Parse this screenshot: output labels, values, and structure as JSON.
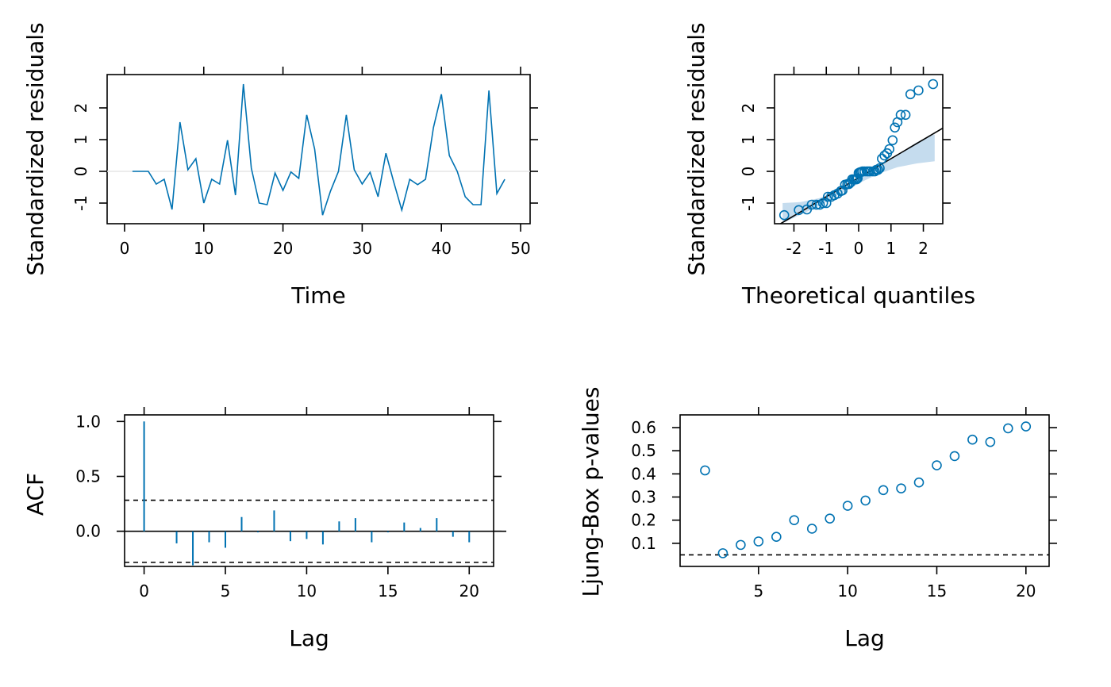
{
  "colors": {
    "series": "#0072B2",
    "band": "#C5DCEE",
    "ref": "#e6e6e6",
    "ink": "#000000"
  },
  "chart_data": [
    {
      "id": "resid",
      "type": "line",
      "xlabel": "Time",
      "ylabel": "Standardized residuals",
      "xlim": [
        -2.2,
        51.2
      ],
      "ylim": [
        -1.65,
        3.05
      ],
      "xticks": [
        0,
        10,
        20,
        30,
        40,
        50
      ],
      "yticks": [
        -1,
        0,
        1,
        2
      ],
      "reference_line_y": 0,
      "x": [
        1,
        2,
        3,
        4,
        5,
        6,
        7,
        8,
        9,
        10,
        11,
        12,
        13,
        14,
        15,
        16,
        17,
        18,
        19,
        20,
        21,
        22,
        23,
        24,
        25,
        26,
        27,
        28,
        29,
        30,
        31,
        32,
        33,
        34,
        35,
        36,
        37,
        38,
        39,
        40,
        41,
        42,
        43,
        44,
        45,
        46,
        47,
        48
      ],
      "y": [
        0.0,
        0.0,
        0.0,
        -0.4,
        -0.25,
        -1.2,
        1.55,
        0.05,
        0.4,
        -1.0,
        -0.25,
        -0.4,
        0.98,
        -0.75,
        2.75,
        0.1,
        -1.0,
        -1.05,
        -0.05,
        -0.6,
        -0.02,
        -0.22,
        1.78,
        0.7,
        -1.38,
        -0.62,
        0.0,
        1.78,
        0.05,
        -0.4,
        -0.03,
        -0.8,
        0.57,
        -0.35,
        -1.22,
        -0.25,
        -0.42,
        -0.25,
        1.38,
        2.43,
        0.5,
        0.0,
        -0.8,
        -1.05,
        -1.05,
        2.55,
        -0.7,
        -0.25
      ]
    },
    {
      "id": "qq",
      "type": "scatter",
      "xlabel": "Theoretical quantiles",
      "ylabel": "Standardized residuals",
      "xlim": [
        -2.6,
        2.6
      ],
      "ylim": [
        -1.65,
        3.05
      ],
      "xticks": [
        -2,
        -1,
        0,
        1,
        2
      ],
      "yticks": [
        -1,
        0,
        1,
        2
      ],
      "reference_line": {
        "intercept": -0.2,
        "slope": 0.6
      },
      "band": {
        "x": [
          -2.35,
          -1.8,
          -1.2,
          -0.6,
          0.0,
          0.6,
          1.2,
          1.8,
          2.35
        ],
        "lower": [
          -1.63,
          -1.37,
          -1.08,
          -0.73,
          -0.38,
          -0.08,
          0.13,
          0.25,
          0.32
        ],
        "upper": [
          -1.0,
          -0.97,
          -0.84,
          -0.56,
          -0.2,
          0.16,
          0.53,
          0.92,
          1.17
        ]
      },
      "x": [
        -2.3,
        -1.85,
        -1.6,
        -1.45,
        -1.3,
        -1.2,
        -1.1,
        -1.0,
        -0.95,
        -0.85,
        -0.75,
        -0.65,
        -0.55,
        -0.5,
        -0.42,
        -0.35,
        -0.3,
        -0.25,
        -0.2,
        -0.15,
        -0.1,
        -0.06,
        -0.03,
        0.0,
        0.04,
        0.08,
        0.12,
        0.18,
        0.25,
        0.3,
        0.35,
        0.45,
        0.5,
        0.55,
        0.6,
        0.65,
        0.72,
        0.8,
        0.88,
        0.95,
        1.05,
        1.12,
        1.2,
        1.3,
        1.45,
        1.6,
        1.85,
        2.3
      ],
      "y": [
        -1.38,
        -1.22,
        -1.2,
        -1.05,
        -1.05,
        -1.05,
        -1.0,
        -1.0,
        -0.8,
        -0.8,
        -0.75,
        -0.7,
        -0.62,
        -0.6,
        -0.42,
        -0.4,
        -0.4,
        -0.35,
        -0.25,
        -0.25,
        -0.25,
        -0.25,
        -0.22,
        -0.05,
        -0.03,
        -0.02,
        0.0,
        0.0,
        0.0,
        0.0,
        0.0,
        0.0,
        0.0,
        0.05,
        0.05,
        0.1,
        0.4,
        0.5,
        0.57,
        0.7,
        0.98,
        1.38,
        1.55,
        1.78,
        1.78,
        2.43,
        2.55,
        2.75
      ]
    },
    {
      "id": "acf",
      "type": "bar",
      "xlabel": "Lag",
      "ylabel": "ACF",
      "xlim": [
        -1.2,
        21.5
      ],
      "ylim": [
        -0.32,
        1.06
      ],
      "xticks": [
        0,
        5,
        10,
        15,
        20
      ],
      "yticks": [
        0.0,
        0.5,
        1.0
      ],
      "ytick_labels": [
        "0.0",
        "0.5",
        "1.0"
      ],
      "confidence_bounds": [
        0.283,
        -0.283
      ],
      "lags": [
        0,
        1,
        2,
        3,
        4,
        5,
        6,
        7,
        8,
        9,
        10,
        11,
        12,
        13,
        14,
        15,
        16,
        17,
        18,
        19,
        20
      ],
      "values": [
        1.0,
        0.0,
        -0.11,
        -0.31,
        -0.1,
        -0.15,
        0.13,
        -0.01,
        0.19,
        -0.09,
        -0.07,
        -0.12,
        0.09,
        0.12,
        -0.1,
        -0.01,
        0.08,
        0.03,
        0.12,
        -0.05,
        -0.1
      ]
    },
    {
      "id": "ljungbox",
      "type": "scatter",
      "xlabel": "Lag",
      "ylabel": "Ljung-Box p-values",
      "xlim": [
        0.6,
        21.3
      ],
      "ylim": [
        0.0,
        0.655
      ],
      "xticks": [
        5,
        10,
        15,
        20
      ],
      "yticks": [
        0.1,
        0.2,
        0.3,
        0.4,
        0.5,
        0.6
      ],
      "ytick_labels": [
        "0.1",
        "0.2",
        "0.3",
        "0.4",
        "0.5",
        "0.6"
      ],
      "threshold": 0.05,
      "x": [
        2,
        3,
        4,
        5,
        6,
        7,
        8,
        9,
        10,
        11,
        12,
        13,
        14,
        15,
        16,
        17,
        18,
        19,
        20
      ],
      "y": [
        0.415,
        0.057,
        0.093,
        0.108,
        0.128,
        0.2,
        0.163,
        0.207,
        0.262,
        0.285,
        0.33,
        0.337,
        0.363,
        0.437,
        0.477,
        0.548,
        0.538,
        0.597,
        0.605
      ]
    }
  ]
}
